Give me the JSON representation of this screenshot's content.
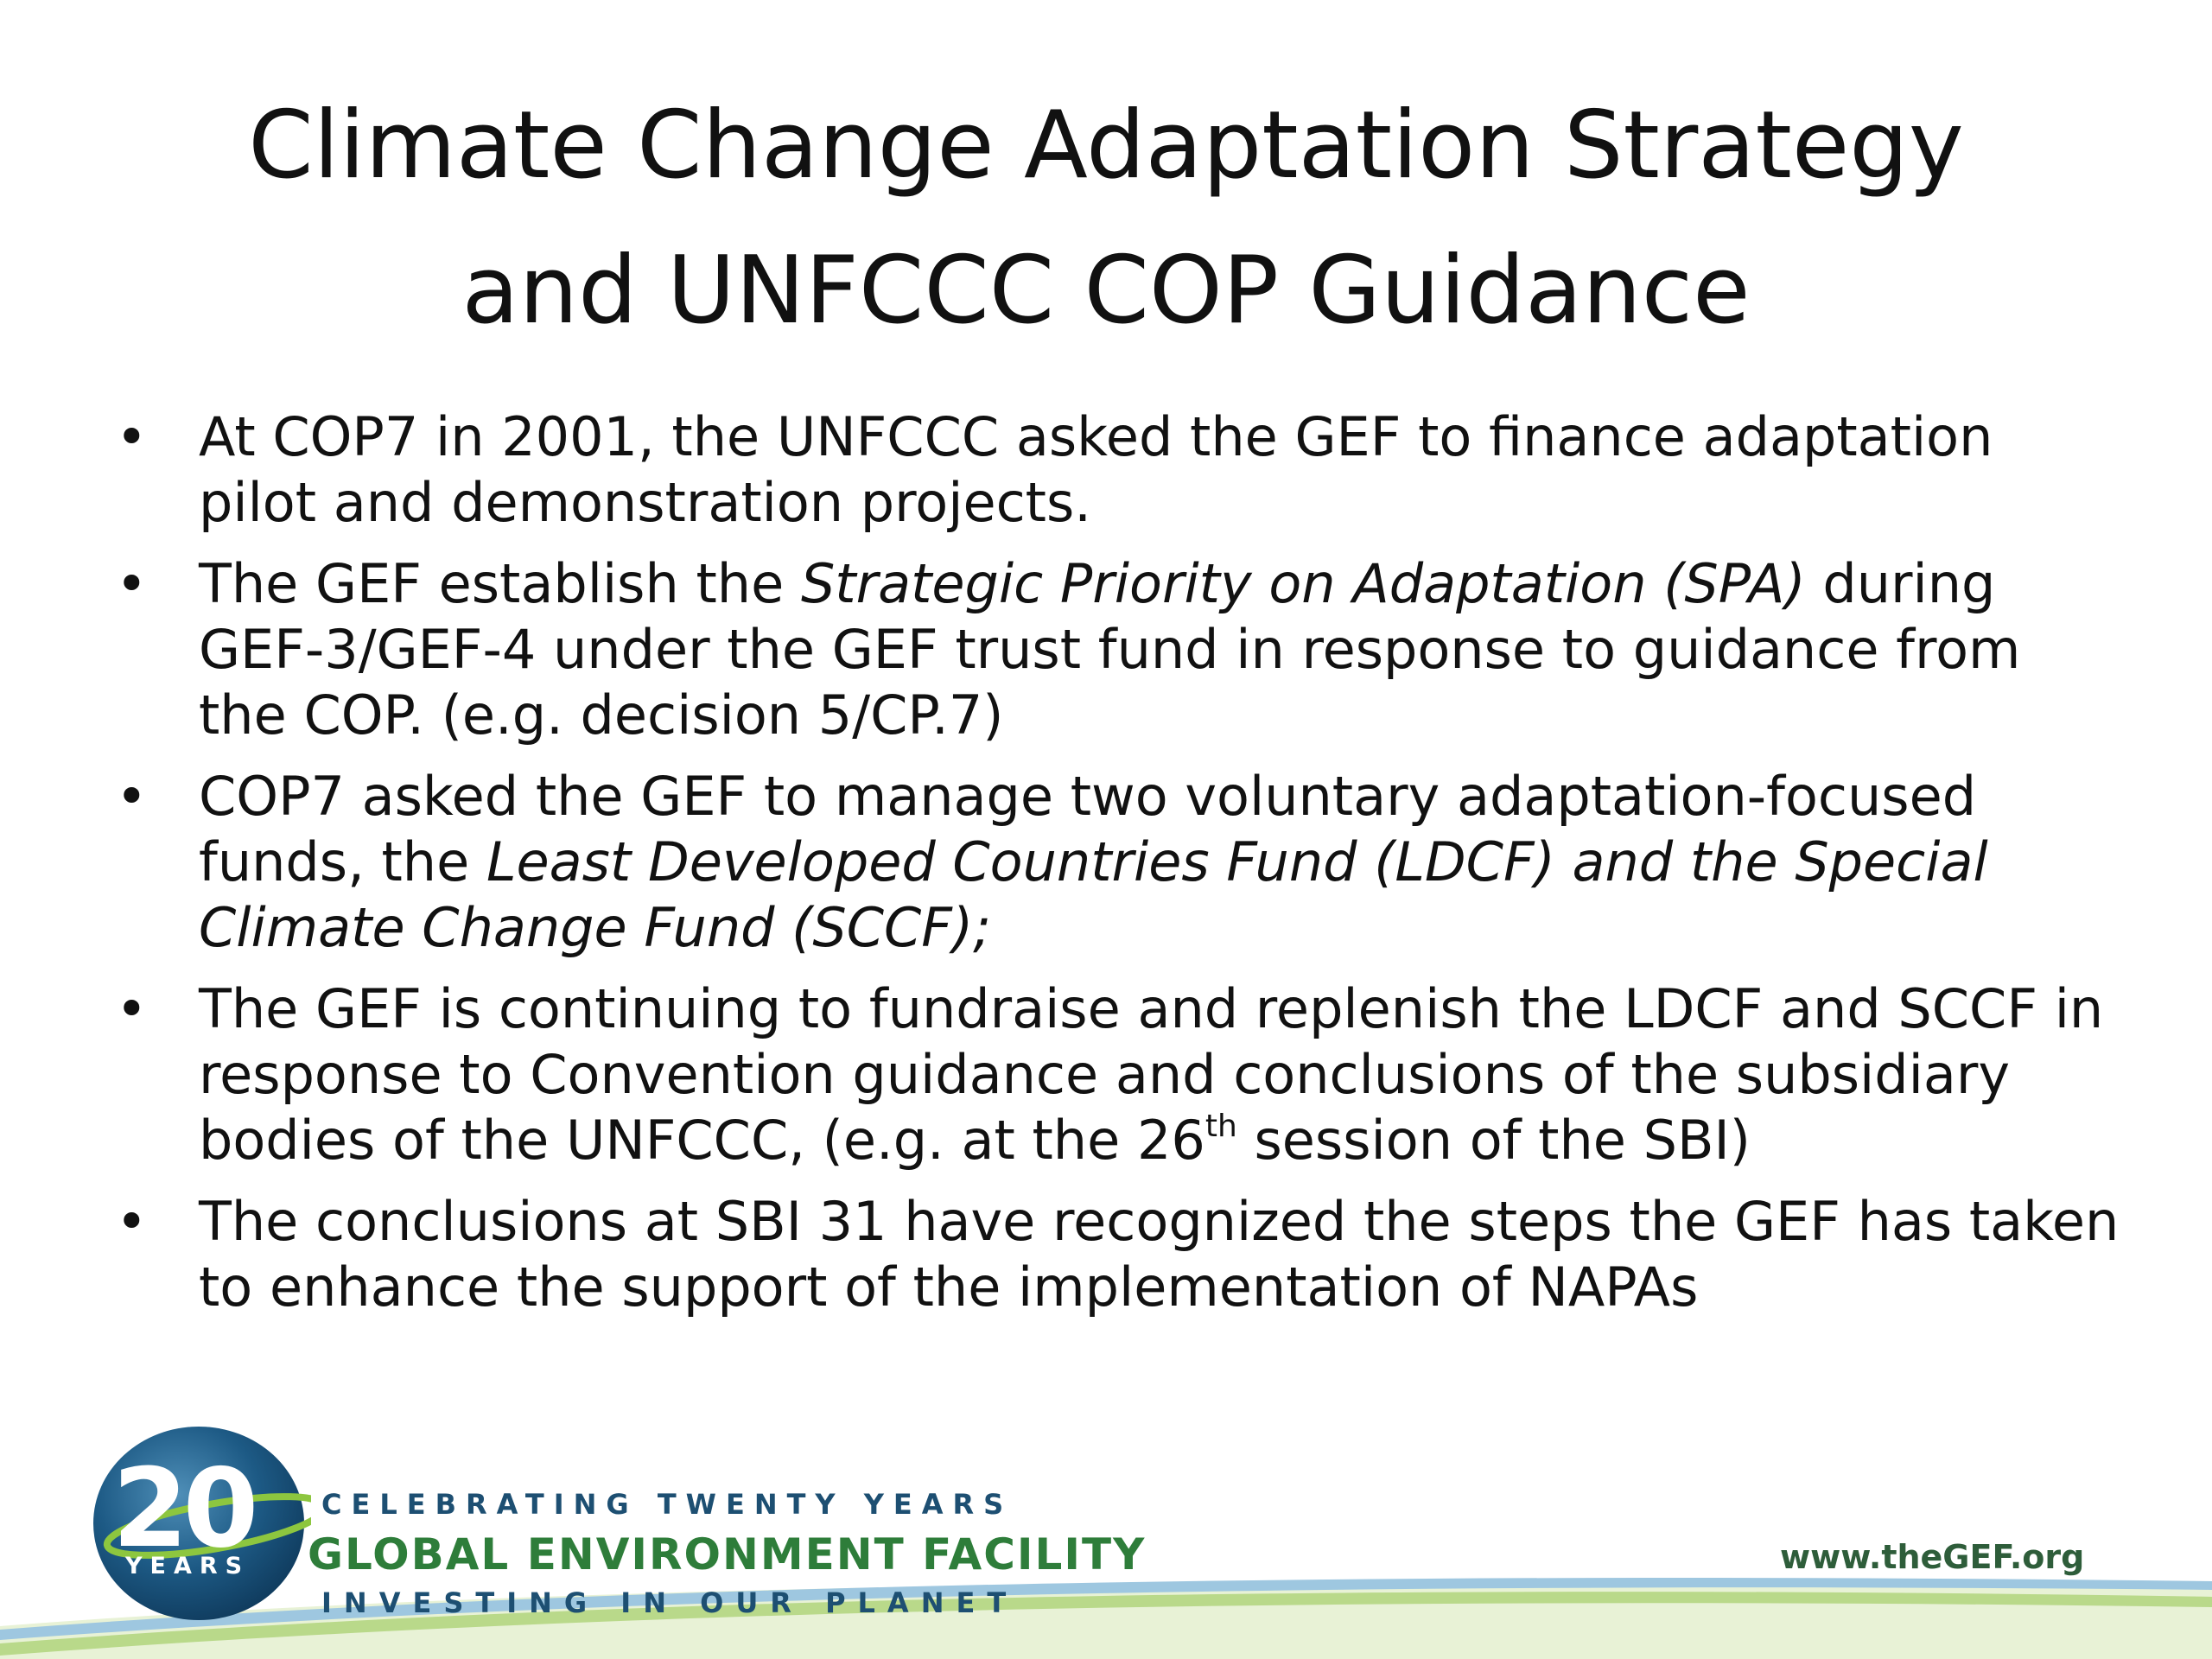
{
  "slide": {
    "title_lines": [
      "Climate Change Adaptation Strategy",
      "and UNFCCC COP Guidance"
    ],
    "bullets": [
      {
        "lines": [
          [
            {
              "t": "At COP7 in 2001, the UNFCCC asked the GEF to finance adaptation"
            }
          ],
          [
            {
              "t": "pilot and demonstration projects."
            }
          ]
        ]
      },
      {
        "lines": [
          [
            {
              "t": "The GEF establish the "
            },
            {
              "t": "Strategic Priority on Adaptation (SPA)",
              "i": true
            },
            {
              "t": " during"
            }
          ],
          [
            {
              "t": "GEF-3/GEF-4 under the GEF trust fund in response to guidance from"
            }
          ],
          [
            {
              "t": "the COP. (e.g. decision 5/CP.7)"
            }
          ]
        ]
      },
      {
        "lines": [
          [
            {
              "t": "COP7 asked the GEF to manage two voluntary adaptation-focused"
            }
          ],
          [
            {
              "t": "funds, the "
            },
            {
              "t": "Least Developed Countries Fund (LDCF) and the Special",
              "i": true
            }
          ],
          [
            {
              "t": "Climate Change Fund (SCCF);",
              "i": true
            }
          ]
        ]
      },
      {
        "lines": [
          [
            {
              "t": "The GEF is continuing to fundraise and replenish the LDCF and SCCF in"
            }
          ],
          [
            {
              "t": "response to Convention guidance and conclusions of the subsidiary"
            }
          ],
          [
            {
              "t": "bodies of the UNFCCC, (e.g. at the 26"
            },
            {
              "t": "th",
              "sup": true
            },
            {
              "t": " session of the SBI)"
            }
          ]
        ]
      },
      {
        "lines": [
          [
            {
              "t": "The conclusions at SBI 31 have recognized the steps the GEF has taken"
            }
          ],
          [
            {
              "t": "to enhance the support of the implementation of NAPAs"
            }
          ]
        ]
      }
    ],
    "bullet_glyph": "•"
  },
  "footer": {
    "logo_number": "20",
    "logo_years": "YEARS",
    "celebrating": "CELEBRATING TWENTY YEARS",
    "org_name": "GLOBAL ENVIRONMENT FACILITY",
    "tagline": "INVESTING IN OUR PLANET",
    "url": "www.theGEF.org",
    "colors": {
      "navy": "#1d4f72",
      "green": "#2e7d3a",
      "swoosh_green": "#b9d98a",
      "swoosh_blue": "#9ec7e0"
    },
    "icons": [
      "globe-logo-icon"
    ]
  }
}
